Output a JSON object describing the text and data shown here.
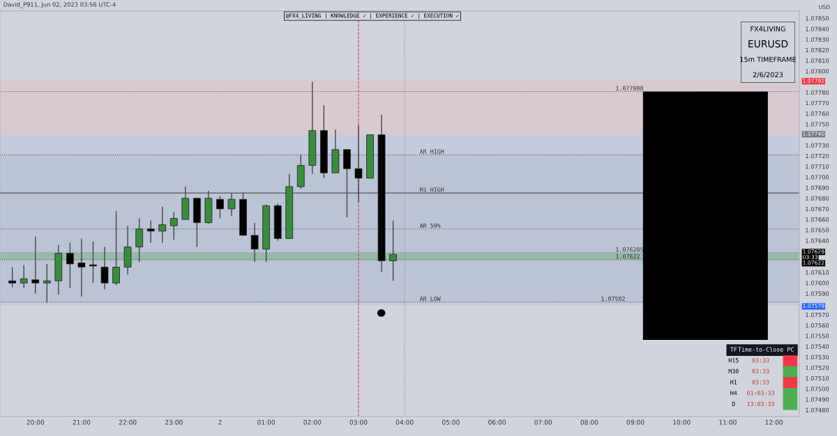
{
  "chart_data": [
    {
      "type": "candlestick",
      "title": "@FX4_LIVING | KNOWLEDGE ✓ | EXPERIENCE ✓ | EXECUTION ✓",
      "ylabel": "USD",
      "x": [
        "2023-06-01T19:30",
        "2023-06-01T19:45",
        "2023-06-01T20:00",
        "2023-06-01T20:15",
        "2023-06-01T20:30",
        "2023-06-01T20:45",
        "2023-06-01T21:00",
        "2023-06-01T21:15",
        "2023-06-01T21:30",
        "2023-06-01T21:45",
        "2023-06-01T22:00",
        "2023-06-01T22:15",
        "2023-06-01T22:30",
        "2023-06-01T22:45",
        "2023-06-01T23:00",
        "2023-06-01T23:15",
        "2023-06-01T23:30",
        "2023-06-01T23:45",
        "2023-06-02T00:00",
        "2023-06-02T00:15",
        "2023-06-02T00:30",
        "2023-06-02T00:45",
        "2023-06-02T01:00",
        "2023-06-02T01:15",
        "2023-06-02T01:30",
        "2023-06-02T01:45",
        "2023-06-02T02:00",
        "2023-06-02T02:15",
        "2023-06-02T02:30",
        "2023-06-02T02:45",
        "2023-06-02T03:00",
        "2023-06-02T03:15",
        "2023-06-02T03:30",
        "2023-06-02T03:45"
      ],
      "ohlc": [
        [
          1.07602,
          1.07615,
          1.07596,
          1.076
        ],
        [
          1.076,
          1.07617,
          1.07595,
          1.07604
        ],
        [
          1.07603,
          1.07644,
          1.0759,
          1.076
        ],
        [
          1.076,
          1.07618,
          1.07582,
          1.07602
        ],
        [
          1.07602,
          1.07636,
          1.07589,
          1.07628
        ],
        [
          1.07628,
          1.07638,
          1.07595,
          1.07618
        ],
        [
          1.07619,
          1.07642,
          1.07587,
          1.07615
        ],
        [
          1.07616,
          1.07639,
          1.076,
          1.07616
        ],
        [
          1.07615,
          1.07634,
          1.07594,
          1.076
        ],
        [
          1.076,
          1.07668,
          1.07598,
          1.07615
        ],
        [
          1.07615,
          1.07654,
          1.07608,
          1.07634
        ],
        [
          1.07634,
          1.07661,
          1.0762,
          1.07651
        ],
        [
          1.07651,
          1.07659,
          1.07638,
          1.07649
        ],
        [
          1.07649,
          1.07672,
          1.07638,
          1.07655
        ],
        [
          1.07654,
          1.07667,
          1.07641,
          1.07661
        ],
        [
          1.0766,
          1.07691,
          1.0766,
          1.0768
        ],
        [
          1.0768,
          1.0768,
          1.07634,
          1.07657
        ],
        [
          1.07657,
          1.07687,
          1.07656,
          1.0768
        ],
        [
          1.07679,
          1.07682,
          1.07661,
          1.0767
        ],
        [
          1.0767,
          1.07685,
          1.07663,
          1.07679
        ],
        [
          1.07679,
          1.07685,
          1.07645,
          1.07645
        ],
        [
          1.07645,
          1.07657,
          1.0762,
          1.07632
        ],
        [
          1.07632,
          1.07674,
          1.0762,
          1.07673
        ],
        [
          1.07673,
          1.07675,
          1.0764,
          1.07642
        ],
        [
          1.07642,
          1.07703,
          1.07642,
          1.07691
        ],
        [
          1.07691,
          1.07721,
          1.07689,
          1.07711
        ],
        [
          1.07711,
          1.0779,
          1.07703,
          1.07744
        ],
        [
          1.07744,
          1.07768,
          1.07699,
          1.07704
        ],
        [
          1.07704,
          1.07745,
          1.07704,
          1.07726
        ],
        [
          1.07726,
          1.07726,
          1.07662,
          1.07708
        ],
        [
          1.07708,
          1.07749,
          1.07676,
          1.07699
        ],
        [
          1.07699,
          1.0774,
          1.07699,
          1.0774
        ],
        [
          1.0774,
          1.07759,
          1.0761,
          1.07621
        ],
        [
          1.07621,
          1.07659,
          1.07602,
          1.07627
        ]
      ],
      "colors": [
        "#000000",
        "#388e3c",
        "#000000",
        "#388e3c",
        "#388e3c",
        "#000000",
        "#000000",
        "#000000",
        "#000000",
        "#388e3c",
        "#388e3c",
        "#388e3c",
        "#000000",
        "#388e3c",
        "#388e3c",
        "#388e3c",
        "#000000",
        "#388e3c",
        "#000000",
        "#388e3c",
        "#000000",
        "#000000",
        "#388e3c",
        "#000000",
        "#388e3c",
        "#388e3c",
        "#388e3c",
        "#000000",
        "#388e3c",
        "#000000",
        "#000000",
        "#388e3c",
        "#000000",
        "#388e3c"
      ],
      "xlim": [
        "2023-06-01T19:14",
        "2023-06-02T12:33"
      ],
      "xticks": [
        {
          "value": "2023-06-01T20:00",
          "label": "20:00"
        },
        {
          "value": "2023-06-01T21:00",
          "label": "21:00"
        },
        {
          "value": "2023-06-01T22:00",
          "label": "22:00"
        },
        {
          "value": "2023-06-01T23:00",
          "label": "23:00"
        },
        {
          "value": "2023-06-02T00:00",
          "label": "2"
        },
        {
          "value": "2023-06-02T01:00",
          "label": "01:00"
        },
        {
          "value": "2023-06-02T02:00",
          "label": "02:00"
        },
        {
          "value": "2023-06-02T03:00",
          "label": "03:00"
        },
        {
          "value": "2023-06-02T04:00",
          "label": "04:00"
        },
        {
          "value": "2023-06-02T05:00",
          "label": "05:00"
        },
        {
          "value": "2023-06-02T06:00",
          "label": "06:00"
        },
        {
          "value": "2023-06-02T07:00",
          "label": "07:00"
        },
        {
          "value": "2023-06-02T08:00",
          "label": "08:00"
        },
        {
          "value": "2023-06-02T09:00",
          "label": "09:00"
        },
        {
          "value": "2023-06-02T10:00",
          "label": "10:00"
        },
        {
          "value": "2023-06-02T11:00",
          "label": "11:00"
        },
        {
          "value": "2023-06-02T12:00",
          "label": "12:00"
        }
      ],
      "ylim": [
        1.07474,
        1.07857
      ],
      "yticks": [
        {
          "value": 1.0748,
          "label": "1.07480"
        },
        {
          "value": 1.0749,
          "label": "1.07490"
        },
        {
          "value": 1.075,
          "label": "1.07500"
        },
        {
          "value": 1.0751,
          "label": "1.07510"
        },
        {
          "value": 1.0752,
          "label": "1.07520"
        },
        {
          "value": 1.0753,
          "label": "1.07530"
        },
        {
          "value": 1.0754,
          "label": "1.07540"
        },
        {
          "value": 1.0755,
          "label": "1.07550"
        },
        {
          "value": 1.0756,
          "label": "1.07560"
        },
        {
          "value": 1.0757,
          "label": "1.07570"
        },
        {
          "value": 1.0759,
          "label": "1.07590"
        },
        {
          "value": 1.076,
          "label": "1.07600"
        },
        {
          "value": 1.0761,
          "label": "1.07610"
        },
        {
          "value": 1.0764,
          "label": "1.07640"
        },
        {
          "value": 1.0765,
          "label": "1.07650"
        },
        {
          "value": 1.0766,
          "label": "1.07660"
        },
        {
          "value": 1.0767,
          "label": "1.07670"
        },
        {
          "value": 1.0768,
          "label": "1.07680"
        },
        {
          "value": 1.0769,
          "label": "1.07690"
        },
        {
          "value": 1.077,
          "label": "1.07700"
        },
        {
          "value": 1.0771,
          "label": "1.07710"
        },
        {
          "value": 1.0772,
          "label": "1.07720"
        },
        {
          "value": 1.0773,
          "label": "1.07730"
        },
        {
          "value": 1.0775,
          "label": "1.07750"
        },
        {
          "value": 1.0776,
          "label": "1.07760"
        },
        {
          "value": 1.0777,
          "label": "1.07770"
        },
        {
          "value": 1.0778,
          "label": "1.07780"
        },
        {
          "value": 1.078,
          "label": "1.07800"
        },
        {
          "value": 1.0781,
          "label": "1.07810"
        },
        {
          "value": 1.0782,
          "label": "1.07820"
        },
        {
          "value": 1.0783,
          "label": "1.07830"
        },
        {
          "value": 1.0784,
          "label": "1.07840"
        },
        {
          "value": 1.0785,
          "label": "1.07850"
        }
      ],
      "ref_lines": [
        {
          "axis": "y",
          "value": 1.07721,
          "label": "AR HIGH",
          "color": "#555555",
          "line_style": "dotted"
        },
        {
          "axis": "y",
          "value": 1.07685,
          "label": "RS HIGH",
          "color": "#555555",
          "line_style": "solid"
        },
        {
          "axis": "y",
          "value": 1.07651,
          "label": "AR 50%",
          "color": "#555555",
          "line_style": "dotted"
        },
        {
          "axis": "y",
          "value": 1.07582,
          "label": "AR LOW",
          "color": "#555555",
          "line_style": "dotted"
        },
        {
          "axis": "y",
          "value": 1.077808,
          "label": "1.077808",
          "color": "#555555",
          "line_style": "dotted"
        },
        {
          "axis": "y",
          "value": 1.076285,
          "label": "1.076285",
          "color": "#555555",
          "line_style": "dotted"
        },
        {
          "axis": "y",
          "value": 1.07622,
          "label": "1.07622",
          "color": "#555555",
          "line_style": "dotted"
        },
        {
          "axis": "x",
          "value": "2023-06-02T03:00",
          "color": "#f23645",
          "line_style": "dashed"
        },
        {
          "axis": "x",
          "value": "2023-06-02T04:00",
          "color": "#888888",
          "line_style": "dotted"
        }
      ],
      "bands": [
        {
          "axis": "y",
          "from": 1.07582,
          "to": 1.07721,
          "color": "#b0b2b8"
        },
        {
          "axis": "y",
          "from": 1.0774,
          "to": 1.07792,
          "color": "#e8b4bc"
        },
        {
          "axis": "y",
          "from": 1.07579,
          "to": 1.0774,
          "color": "#a9bde6"
        },
        {
          "axis": "y",
          "from": 1.07622,
          "to": 1.07628,
          "color": "#4caf50"
        }
      ],
      "annotations": [
        "David_P911, Jun 02, 2023 03:56 UTC-4",
        "1.07792",
        "1.07740",
        "1.07629",
        "03:33",
        "1.07622",
        "1.07579",
        {
          "text": "1.07582",
          "x": "2023-06-02T08:15",
          "y": 1.07582
        },
        "FX4LIVING",
        "EURUSD",
        "15m TIMEFRAME",
        "2/6/2023",
        "TF",
        "Time-to-Close",
        "PC",
        "H15",
        "03:33",
        "M30",
        "03:33",
        "H1",
        "03:33",
        "H4",
        "01:03:33",
        "D",
        "13:03:33"
      ]
    }
  ]
}
